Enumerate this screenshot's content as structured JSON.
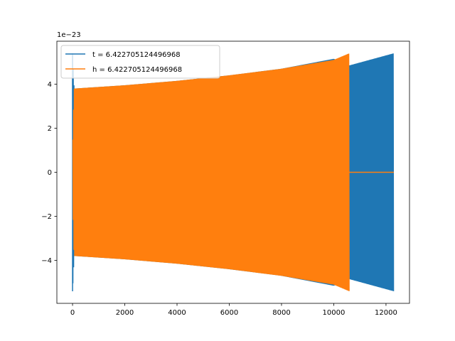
{
  "chart_data": {
    "type": "line",
    "title": "",
    "xlabel": "",
    "ylabel": "",
    "y_offset_text": "1e−23",
    "y_scale_factor": 1e-23,
    "xlim": [
      -600,
      12900
    ],
    "ylim": [
      -5.95,
      5.95
    ],
    "x_ticks": [
      0,
      2000,
      4000,
      6000,
      8000,
      10000,
      12000
    ],
    "x_tick_labels": [
      "0",
      "2000",
      "4000",
      "6000",
      "8000",
      "10000",
      "12000"
    ],
    "y_ticks": [
      -4,
      -2,
      0,
      2,
      4
    ],
    "y_tick_labels": [
      "−4",
      "−2",
      "0",
      "2",
      "4"
    ],
    "grid": false,
    "legend_position": "upper-left",
    "series": [
      {
        "name": "t = 6.422705124496968",
        "color": "#1f77b4",
        "style": "oscillating signal, symmetric envelope",
        "x_range": [
          0,
          12300
        ],
        "initial_spike": 5.3,
        "envelope": [
          {
            "x": 0,
            "amplitude": 5.4
          },
          {
            "x": 60,
            "amplitude": 3.8
          },
          {
            "x": 2000,
            "amplitude": 3.95
          },
          {
            "x": 4000,
            "amplitude": 4.15
          },
          {
            "x": 6000,
            "amplitude": 4.4
          },
          {
            "x": 8000,
            "amplitude": 4.7
          },
          {
            "x": 10000,
            "amplitude": 5.15
          },
          {
            "x": 10600,
            "amplitude": 4.85
          },
          {
            "x": 12300,
            "amplitude": 5.4
          }
        ]
      },
      {
        "name": "h = 6.422705124496968",
        "color": "#ff7f0e",
        "style": "oscillating signal, symmetric envelope, then flat zero",
        "x_range": [
          0,
          12300
        ],
        "envelope": [
          {
            "x": 0,
            "amplitude": 0.8
          },
          {
            "x": 60,
            "amplitude": 3.8
          },
          {
            "x": 2000,
            "amplitude": 3.95
          },
          {
            "x": 4000,
            "amplitude": 4.15
          },
          {
            "x": 6000,
            "amplitude": 4.4
          },
          {
            "x": 8000,
            "amplitude": 4.7
          },
          {
            "x": 10000,
            "amplitude": 5.1
          },
          {
            "x": 10600,
            "amplitude": 5.4
          }
        ],
        "flat_zero_from": 10600
      }
    ]
  }
}
